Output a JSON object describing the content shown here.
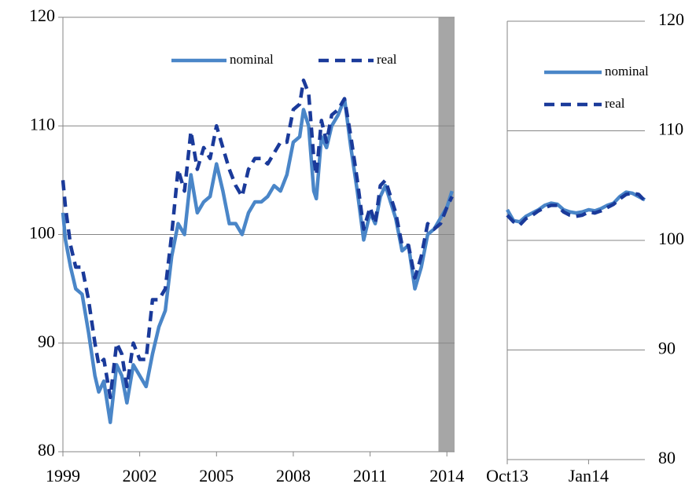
{
  "chart_data": [
    {
      "type": "line",
      "x": [
        1999.0,
        1999.1,
        1999.3,
        1999.5,
        1999.75,
        2000.0,
        2000.25,
        2000.4,
        2000.6,
        2000.85,
        2001.1,
        2001.3,
        2001.5,
        2001.75,
        2002.0,
        2002.25,
        2002.5,
        2002.75,
        2003.0,
        2003.25,
        2003.5,
        2003.75,
        2004.0,
        2004.25,
        2004.5,
        2004.75,
        2005.0,
        2005.25,
        2005.5,
        2005.75,
        2006.0,
        2006.25,
        2006.5,
        2006.75,
        2007.0,
        2007.25,
        2007.5,
        2007.75,
        2008.0,
        2008.25,
        2008.4,
        2008.6,
        2008.8,
        2008.9,
        2009.1,
        2009.3,
        2009.5,
        2009.75,
        2010.0,
        2010.25,
        2010.5,
        2010.75,
        2011.0,
        2011.2,
        2011.4,
        2011.6,
        2011.8,
        2012.0,
        2012.25,
        2012.5,
        2012.75,
        2013.0,
        2013.25,
        2013.5,
        2013.75,
        2014.0,
        2014.2
      ],
      "series": [
        {
          "name": "nominal",
          "color": "#4a86c8",
          "dash": false,
          "values": [
            102,
            99.5,
            97,
            95,
            94.5,
            91,
            87,
            85.5,
            86.5,
            82.7,
            88,
            87,
            84.5,
            88,
            87,
            86,
            89,
            91.5,
            93,
            98,
            101,
            100,
            105.5,
            102,
            103,
            103.5,
            106.5,
            104,
            101,
            101,
            100,
            102,
            103,
            103,
            103.5,
            104.5,
            104,
            105.5,
            108.5,
            109,
            111.5,
            110,
            104,
            103.3,
            109,
            108,
            110,
            111,
            112.5,
            108,
            104,
            99.5,
            102,
            101,
            103.5,
            104.5,
            103,
            101.5,
            98.5,
            99,
            95,
            97,
            100,
            100.5,
            101.5,
            102.5,
            104
          ]
        },
        {
          "name": "real",
          "color": "#1a3a9a",
          "dash": true,
          "values": [
            105,
            102.5,
            99,
            97,
            97,
            94,
            90,
            88,
            88.5,
            85,
            90,
            89,
            86,
            90,
            88.5,
            88.5,
            94,
            94,
            95,
            100,
            106,
            104,
            109.5,
            106,
            108,
            107,
            110,
            108,
            106,
            104.5,
            103.5,
            106,
            107,
            107,
            106.5,
            107.5,
            108.5,
            108.5,
            111.5,
            112,
            114.2,
            113,
            107,
            105.5,
            110.5,
            108.5,
            111,
            111.5,
            112.5,
            109,
            105,
            100.5,
            102.5,
            101,
            104.5,
            105,
            103.5,
            102,
            99,
            99,
            96,
            98,
            101,
            100.5,
            101,
            102.5,
            103.5
          ]
        }
      ],
      "xlim": [
        1999,
        2014.3
      ],
      "xticks": [
        1999,
        2002,
        2005,
        2008,
        2011,
        2014
      ],
      "ylim": [
        80,
        120
      ],
      "yticks": [
        80,
        90,
        100,
        110,
        120
      ],
      "shade": [
        2013.67,
        2014.3
      ],
      "shade_color": "#a6a6a6",
      "grid": true,
      "yaxis_side": "left",
      "legend": "upper-center"
    },
    {
      "type": "line",
      "categories": [
        "Oct13",
        null,
        null,
        null,
        null,
        null,
        null,
        null,
        null,
        null,
        null,
        null,
        null,
        "Jan14",
        null,
        null,
        null,
        null,
        null,
        null,
        null,
        null,
        null
      ],
      "series": [
        {
          "name": "nominal",
          "color": "#4a86c8",
          "dash": false,
          "values": [
            102.8,
            101.8,
            101.7,
            102.2,
            102.5,
            102.8,
            103.2,
            103.4,
            103.3,
            102.8,
            102.6,
            102.5,
            102.6,
            102.8,
            102.7,
            102.9,
            103.2,
            103.4,
            104.0,
            104.4,
            104.3,
            104.0,
            103.7
          ]
        },
        {
          "name": "real",
          "color": "#1a3a9a",
          "dash": true,
          "values": [
            102.3,
            101.7,
            101.4,
            102.0,
            102.3,
            102.7,
            103.0,
            103.2,
            103.2,
            102.6,
            102.3,
            102.2,
            102.3,
            102.6,
            102.5,
            102.7,
            103.0,
            103.3,
            103.8,
            104.2,
            104.3,
            104.2,
            103.6
          ]
        }
      ],
      "ylim": [
        80,
        120
      ],
      "yticks": [
        80,
        90,
        100,
        110,
        120
      ],
      "grid": true,
      "yaxis_side": "right",
      "legend": "upper-right"
    }
  ]
}
